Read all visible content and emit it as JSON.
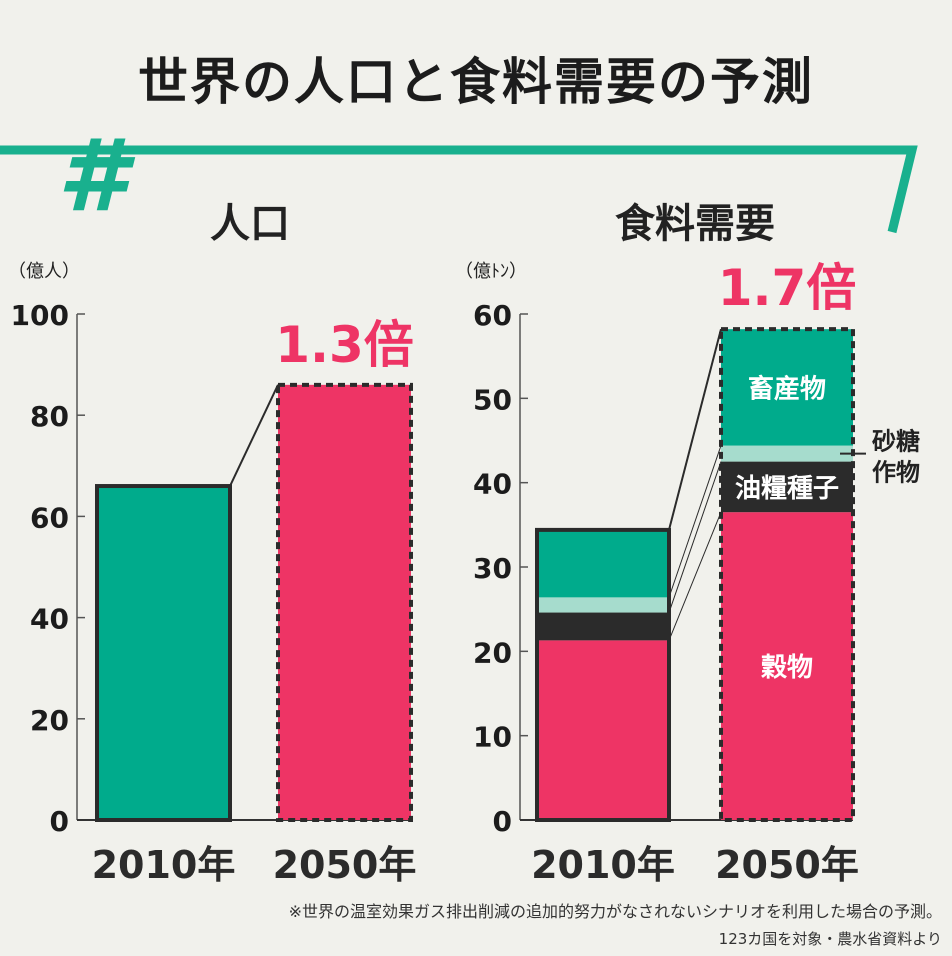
{
  "title": "世界の人口と食料需要の予測",
  "hash_mark": "#",
  "colors": {
    "green": "#00ab8c",
    "pink": "#ee3465",
    "light_green": "#a6dccd",
    "dark": "#2b2b2b",
    "accent_line": "#19b08e",
    "bg": "#f1f1ec"
  },
  "chart_data": [
    {
      "type": "bar",
      "title": "人口",
      "ylabel": "（億人）",
      "ylim": [
        0,
        100
      ],
      "yticks": [
        "0",
        "20",
        "40",
        "60",
        "80",
        "100"
      ],
      "categories": [
        "2010年",
        "2050年"
      ],
      "values": [
        66,
        86
      ],
      "ratio_label": "1.3倍"
    },
    {
      "type": "bar",
      "stacked": true,
      "title": "食料需要",
      "ylabel": "（億ﾄﾝ）",
      "ylim": [
        0,
        60
      ],
      "yticks": [
        "0",
        "10",
        "20",
        "30",
        "40",
        "50",
        "60"
      ],
      "categories": [
        "2010年",
        "2050年"
      ],
      "series": [
        {
          "name": "穀物",
          "values": [
            21.3,
            36.5
          ],
          "color": "#ee3465"
        },
        {
          "name": "油糧種子",
          "values": [
            3.3,
            6.0
          ],
          "color": "#2b2b2b"
        },
        {
          "name": "砂糖作物",
          "values": [
            1.8,
            1.9
          ],
          "color": "#a6dccd"
        },
        {
          "name": "畜産物",
          "values": [
            8.0,
            13.8
          ],
          "color": "#00ab8c"
        }
      ],
      "ratio_label": "1.7倍"
    }
  ],
  "footnote": "※世界の温室効果ガス排出削減の追加的努力がなされないシナリオを利用した場合の予測。",
  "source": "123カ国を対象・農水省資料より"
}
